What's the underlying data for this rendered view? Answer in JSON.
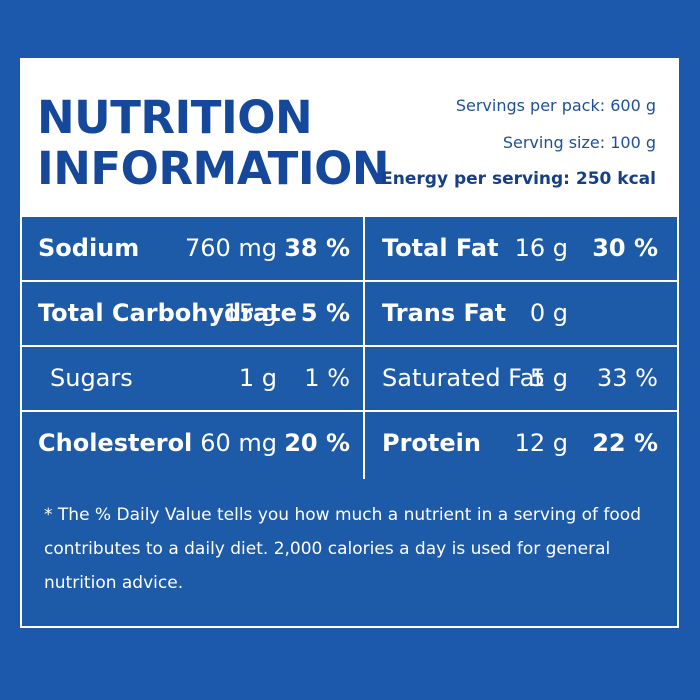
{
  "panel": {
    "title_lines": [
      "NUTRITION",
      "INFORMATION"
    ],
    "serving": {
      "servings_per_pack": "Servings per pack: 600 g",
      "serving_size": "Serving size: 100 g",
      "energy_per_serving": "Energy per serving: 250 kcal"
    },
    "rows": [
      {
        "left": {
          "name": "Sodium",
          "amount": "760 mg",
          "pct": "38 %"
        },
        "right": {
          "name": "Total Fat",
          "amount": "16 g",
          "pct": "30 %"
        }
      },
      {
        "left": {
          "name": "Total Carbohydrate",
          "amount": "15 g",
          "pct": "5 %"
        },
        "right": {
          "name": "Trans Fat",
          "amount": "0 g",
          "pct": ""
        }
      },
      {
        "left": {
          "name": "Sugars",
          "amount": "1 g",
          "pct": "1 %"
        },
        "right": {
          "name": "Saturated Fat",
          "amount": "5 g",
          "pct": "33 %"
        }
      },
      {
        "left": {
          "name": "Cholesterol",
          "amount": "60 mg",
          "pct": "20 %"
        },
        "right": {
          "name": "Protein",
          "amount": "12 g",
          "pct": "22 %"
        }
      }
    ],
    "footnote": "* The % Daily Value tells you how much a nutrient in a serving of food contributes to a daily diet. 2,000 calories a day is used for general nutrition advice."
  }
}
